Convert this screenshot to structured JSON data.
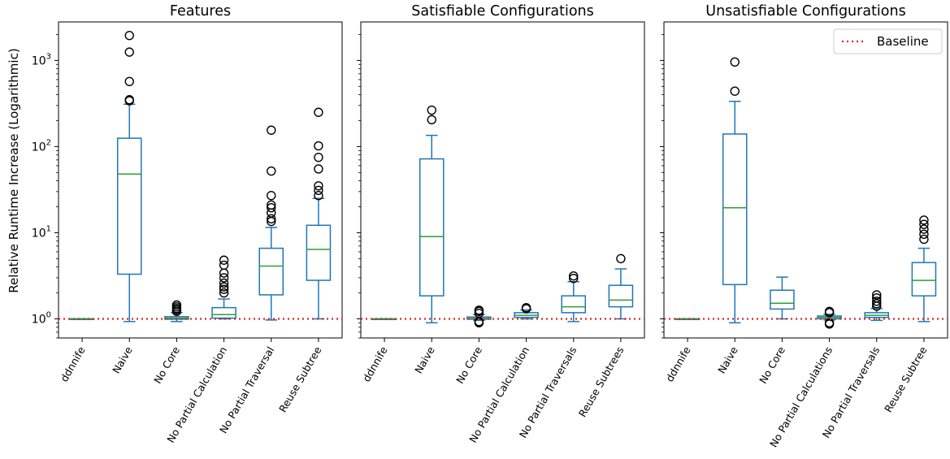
{
  "ylabel": "Relative Runtime Increase (Logarithmic)",
  "yscale": "log",
  "ylim": [
    0.6,
    2800
  ],
  "y_ticks": [
    {
      "value": 1,
      "base": "10",
      "exp": "0"
    },
    {
      "value": 10,
      "base": "10",
      "exp": "1"
    },
    {
      "value": 100,
      "base": "10",
      "exp": "2"
    },
    {
      "value": 1000,
      "base": "10",
      "exp": "3"
    }
  ],
  "legend": {
    "label": "Baseline",
    "placement": "top-right",
    "panel": 2
  },
  "baseline": {
    "value": 1,
    "color": "#d62728"
  },
  "colors": {
    "box": "#1f77b4",
    "median": "#2ca02c",
    "flier": "#000000"
  },
  "chart_data": [
    {
      "type": "box",
      "title": "Features",
      "categories": [
        "ddnnife",
        "Naive",
        "No Core",
        "No Partial Calculation",
        "No Partial Traversal",
        "Reuse Subtree"
      ],
      "boxes": [
        {
          "whislo": 1.0,
          "q1": 1.0,
          "med": 1.0,
          "q3": 1.0,
          "whishi": 1.0,
          "fliers": []
        },
        {
          "whislo": 0.93,
          "q1": 3.3,
          "med": 48,
          "q3": 125,
          "whishi": 310,
          "fliers": [
            340,
            350,
            570,
            1250,
            1950
          ]
        },
        {
          "whislo": 0.93,
          "q1": 0.99,
          "med": 1.02,
          "q3": 1.06,
          "whishi": 1.18,
          "fliers": [
            1.22,
            1.27,
            1.32,
            1.38,
            1.45
          ]
        },
        {
          "whislo": 1.0,
          "q1": 1.02,
          "med": 1.12,
          "q3": 1.35,
          "whishi": 1.7,
          "fliers": [
            2.0,
            2.2,
            2.35,
            2.6,
            3.0,
            3.4,
            4.2,
            4.8
          ]
        },
        {
          "whislo": 0.97,
          "q1": 1.9,
          "med": 4.1,
          "q3": 6.6,
          "whishi": 11.5,
          "fliers": [
            13.5,
            14.5,
            17,
            19.5,
            21,
            27,
            52,
            155
          ]
        },
        {
          "whislo": 1.0,
          "q1": 2.8,
          "med": 6.4,
          "q3": 12.2,
          "whishi": 25,
          "fliers": [
            27,
            31,
            35,
            55,
            75,
            102,
            250
          ]
        }
      ]
    },
    {
      "type": "box",
      "title": "Satisfiable Configurations",
      "categories": [
        "ddnnife",
        "Naive",
        "No Core",
        "No Partial Calculation",
        "No Partial Traversals",
        "Reuse Subtrees"
      ],
      "boxes": [
        {
          "whislo": 1.0,
          "q1": 1.0,
          "med": 1.0,
          "q3": 1.0,
          "whishi": 1.0,
          "fliers": []
        },
        {
          "whislo": 0.9,
          "q1": 1.85,
          "med": 9.0,
          "q3": 72,
          "whishi": 135,
          "fliers": [
            205,
            265
          ]
        },
        {
          "whislo": 0.96,
          "q1": 0.99,
          "med": 1.01,
          "q3": 1.05,
          "whishi": 1.12,
          "fliers": [
            0.9,
            0.93,
            1.16,
            1.22,
            1.26
          ]
        },
        {
          "whislo": 1.0,
          "q1": 1.04,
          "med": 1.1,
          "q3": 1.18,
          "whishi": 1.27,
          "fliers": [
            1.31,
            1.35
          ]
        },
        {
          "whislo": 0.93,
          "q1": 1.18,
          "med": 1.38,
          "q3": 1.85,
          "whishi": 2.7,
          "fliers": [
            2.95,
            3.15
          ]
        },
        {
          "whislo": 1.0,
          "q1": 1.38,
          "med": 1.65,
          "q3": 2.45,
          "whishi": 3.8,
          "fliers": [
            5.0
          ]
        }
      ]
    },
    {
      "type": "box",
      "title": "Unsatisfiable Configurations",
      "categories": [
        "ddnnife",
        "Naive",
        "No Core",
        "No Partial Calculations",
        "No Partial Traversals",
        "Reuse Subtree"
      ],
      "boxes": [
        {
          "whislo": 1.0,
          "q1": 1.0,
          "med": 1.0,
          "q3": 1.0,
          "whishi": 1.0,
          "fliers": []
        },
        {
          "whislo": 0.9,
          "q1": 2.5,
          "med": 19.5,
          "q3": 140,
          "whishi": 335,
          "fliers": [
            440,
            960
          ]
        },
        {
          "whislo": 1.0,
          "q1": 1.3,
          "med": 1.52,
          "q3": 2.15,
          "whishi": 3.05,
          "fliers": []
        },
        {
          "whislo": 0.97,
          "q1": 1.0,
          "med": 1.04,
          "q3": 1.08,
          "whishi": 1.13,
          "fliers": [
            0.87,
            0.9,
            1.18,
            1.22
          ]
        },
        {
          "whislo": 0.96,
          "q1": 1.04,
          "med": 1.1,
          "q3": 1.18,
          "whishi": 1.32,
          "fliers": [
            1.4,
            1.5,
            1.6,
            1.75,
            1.9
          ]
        },
        {
          "whislo": 0.93,
          "q1": 1.85,
          "med": 2.8,
          "q3": 4.5,
          "whishi": 6.6,
          "fliers": [
            8.4,
            9.6,
            11,
            12.5,
            14
          ]
        }
      ]
    }
  ]
}
